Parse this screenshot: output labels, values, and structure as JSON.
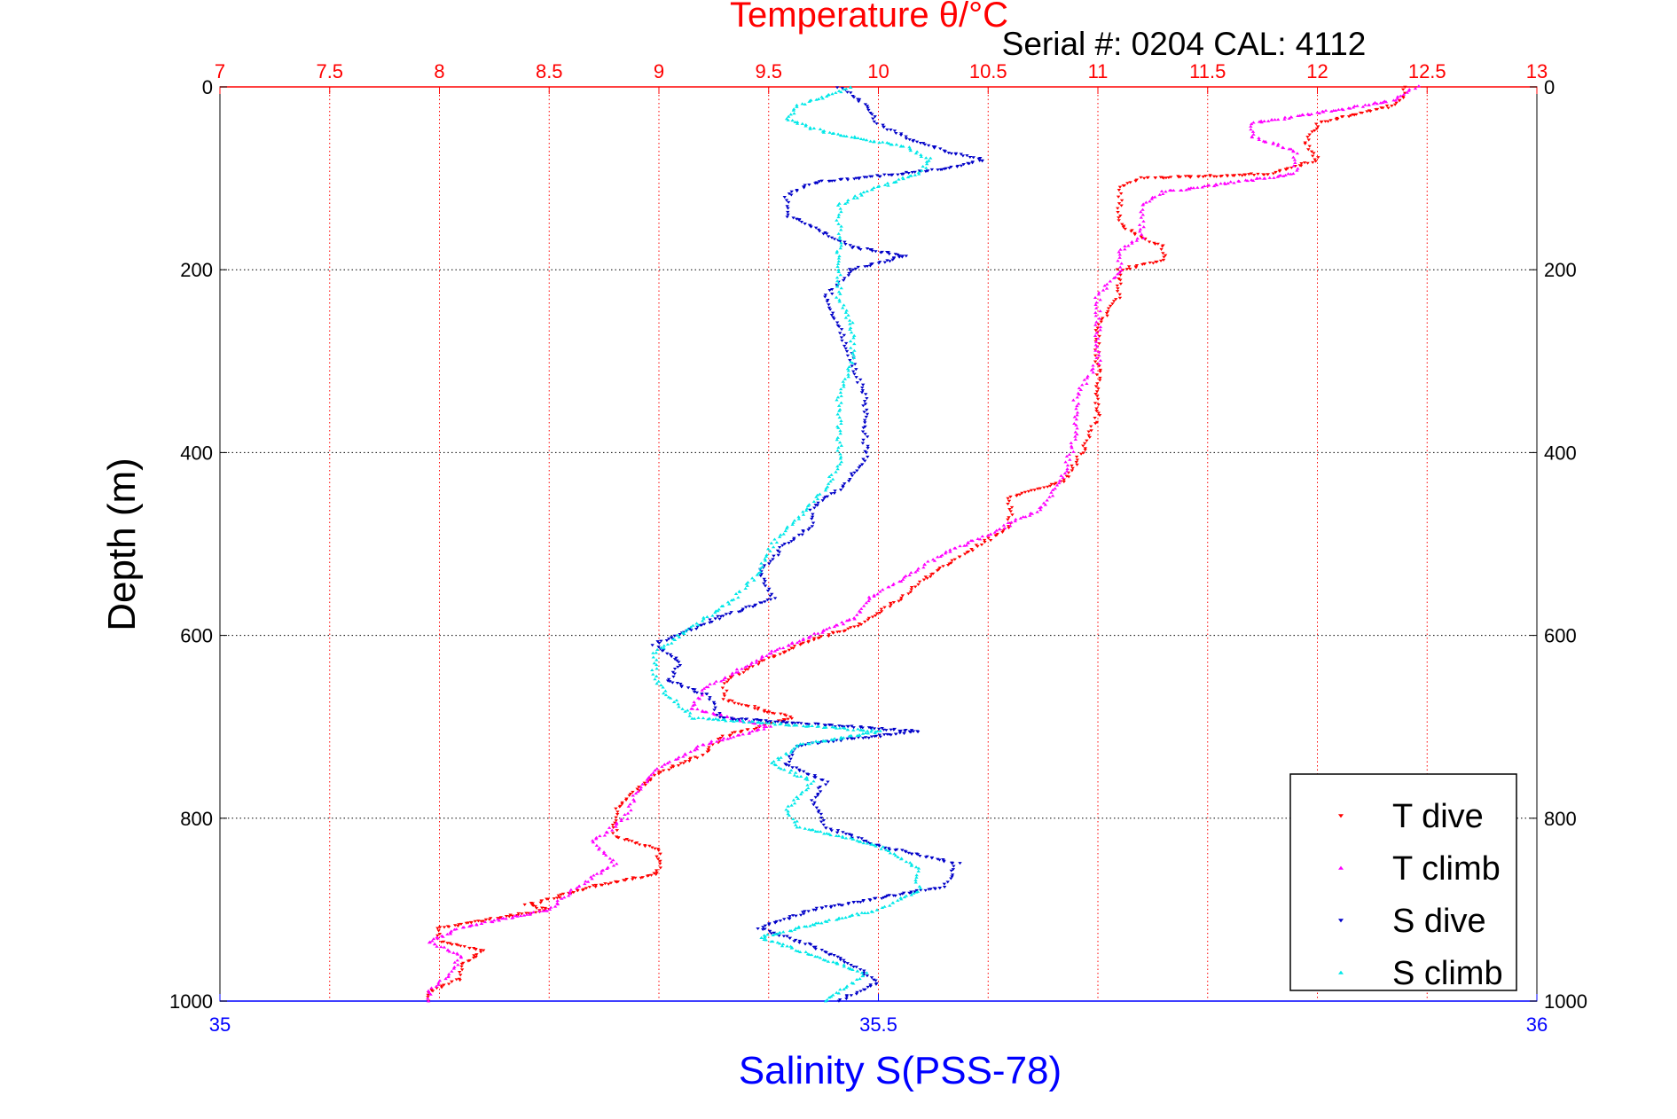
{
  "chart_data": {
    "type": "scatter",
    "title": "Temperature θ/°C",
    "subtitle": "Serial #: 0204  CAL: 4112",
    "ylabel": "Depth (m)",
    "xlabel_top": "Temperature θ/°C",
    "xlabel_bottom": "Salinity S(PSS-78)",
    "y_axis": {
      "min": 0,
      "max": 1000,
      "inverted": true,
      "ticks": [
        "0",
        "200",
        "400",
        "600",
        "800",
        "1000"
      ]
    },
    "x_axis_top": {
      "min": 7,
      "max": 13,
      "ticks": [
        "7",
        "7.5",
        "8",
        "8.5",
        "9",
        "9.5",
        "10",
        "10.5",
        "11",
        "11.5",
        "12",
        "12.5",
        "13"
      ]
    },
    "x_axis_bottom": {
      "min": 35,
      "max": 36,
      "ticks": [
        "35",
        "35.5",
        "36"
      ]
    },
    "grid": true,
    "legend_position": "bottom-right",
    "colors": {
      "temperature_axis": "#ff0000",
      "salinity_axis": "#0000ff",
      "t_dive": "#ff0000",
      "t_climb": "#ff00ff",
      "s_dive": "#0000c8",
      "s_climb": "#00e8e8"
    },
    "series": [
      {
        "name": "T dive",
        "axis": "temperature",
        "marker": "triangle-down",
        "points": [
          [
            12.4,
            0
          ],
          [
            12.4,
            10
          ],
          [
            12.35,
            20
          ],
          [
            12.0,
            40
          ],
          [
            11.95,
            60
          ],
          [
            12.0,
            80
          ],
          [
            11.8,
            95
          ],
          [
            11.2,
            100
          ],
          [
            11.1,
            110
          ],
          [
            11.1,
            130
          ],
          [
            11.1,
            150
          ],
          [
            11.2,
            165
          ],
          [
            11.3,
            175
          ],
          [
            11.3,
            190
          ],
          [
            11.1,
            200
          ],
          [
            11.1,
            230
          ],
          [
            11.0,
            260
          ],
          [
            11.0,
            300
          ],
          [
            11.0,
            330
          ],
          [
            11.0,
            360
          ],
          [
            10.95,
            390
          ],
          [
            10.9,
            410
          ],
          [
            10.85,
            430
          ],
          [
            10.6,
            450
          ],
          [
            10.6,
            480
          ],
          [
            10.4,
            510
          ],
          [
            10.2,
            540
          ],
          [
            10.1,
            560
          ],
          [
            10.0,
            575
          ],
          [
            9.9,
            590
          ],
          [
            9.7,
            605
          ],
          [
            9.5,
            625
          ],
          [
            9.3,
            650
          ],
          [
            9.3,
            670
          ],
          [
            9.6,
            690
          ],
          [
            9.3,
            710
          ],
          [
            9.2,
            730
          ],
          [
            9.0,
            750
          ],
          [
            8.9,
            770
          ],
          [
            8.8,
            790
          ],
          [
            8.8,
            820
          ],
          [
            9.0,
            835
          ],
          [
            9.0,
            860
          ],
          [
            8.7,
            875
          ],
          [
            8.4,
            895
          ],
          [
            8.5,
            900
          ],
          [
            8.0,
            920
          ],
          [
            8.0,
            935
          ],
          [
            8.2,
            945
          ],
          [
            8.1,
            960
          ],
          [
            8.1,
            975
          ],
          [
            7.95,
            990
          ],
          [
            7.95,
            1000
          ]
        ]
      },
      {
        "name": "T climb",
        "axis": "temperature",
        "marker": "triangle-up",
        "points": [
          [
            12.45,
            0
          ],
          [
            12.35,
            15
          ],
          [
            11.7,
            40
          ],
          [
            11.7,
            55
          ],
          [
            11.9,
            70
          ],
          [
            11.9,
            95
          ],
          [
            11.6,
            105
          ],
          [
            11.3,
            115
          ],
          [
            11.2,
            130
          ],
          [
            11.2,
            150
          ],
          [
            11.2,
            165
          ],
          [
            11.1,
            180
          ],
          [
            11.1,
            200
          ],
          [
            11.0,
            230
          ],
          [
            11.0,
            260
          ],
          [
            11.0,
            300
          ],
          [
            10.9,
            340
          ],
          [
            10.9,
            380
          ],
          [
            10.85,
            420
          ],
          [
            10.75,
            460
          ],
          [
            10.5,
            490
          ],
          [
            10.3,
            510
          ],
          [
            10.1,
            540
          ],
          [
            9.95,
            560
          ],
          [
            9.9,
            580
          ],
          [
            9.7,
            600
          ],
          [
            9.5,
            620
          ],
          [
            9.2,
            660
          ],
          [
            9.15,
            680
          ],
          [
            9.5,
            700
          ],
          [
            9.2,
            720
          ],
          [
            9.0,
            745
          ],
          [
            8.9,
            770
          ],
          [
            8.85,
            800
          ],
          [
            8.7,
            825
          ],
          [
            8.8,
            850
          ],
          [
            8.6,
            880
          ],
          [
            8.5,
            900
          ],
          [
            8.1,
            920
          ],
          [
            7.95,
            935
          ],
          [
            8.1,
            950
          ],
          [
            8.05,
            970
          ],
          [
            7.95,
            990
          ],
          [
            7.95,
            1000
          ]
        ]
      },
      {
        "name": "S dive",
        "axis": "salinity",
        "marker": "triangle-down",
        "points": [
          [
            35.47,
            0
          ],
          [
            35.49,
            20
          ],
          [
            35.5,
            40
          ],
          [
            35.52,
            55
          ],
          [
            35.55,
            70
          ],
          [
            35.58,
            80
          ],
          [
            35.55,
            90
          ],
          [
            35.45,
            105
          ],
          [
            35.43,
            120
          ],
          [
            35.43,
            140
          ],
          [
            35.46,
            160
          ],
          [
            35.48,
            175
          ],
          [
            35.52,
            185
          ],
          [
            35.48,
            200
          ],
          [
            35.46,
            230
          ],
          [
            35.47,
            260
          ],
          [
            35.48,
            300
          ],
          [
            35.49,
            340
          ],
          [
            35.49,
            380
          ],
          [
            35.49,
            410
          ],
          [
            35.47,
            440
          ],
          [
            35.45,
            460
          ],
          [
            35.45,
            480
          ],
          [
            35.43,
            500
          ],
          [
            35.41,
            530
          ],
          [
            35.42,
            560
          ],
          [
            35.38,
            580
          ],
          [
            35.33,
            610
          ],
          [
            35.35,
            630
          ],
          [
            35.34,
            650
          ],
          [
            35.37,
            665
          ],
          [
            35.38,
            690
          ],
          [
            35.53,
            705
          ],
          [
            35.44,
            720
          ],
          [
            35.43,
            740
          ],
          [
            35.46,
            760
          ],
          [
            35.45,
            780
          ],
          [
            35.46,
            810
          ],
          [
            35.5,
            830
          ],
          [
            35.56,
            850
          ],
          [
            35.55,
            875
          ],
          [
            35.45,
            900
          ],
          [
            35.41,
            920
          ],
          [
            35.45,
            940
          ],
          [
            35.48,
            960
          ],
          [
            35.5,
            980
          ],
          [
            35.47,
            1000
          ]
        ]
      },
      {
        "name": "S climb",
        "axis": "salinity",
        "marker": "triangle-up",
        "points": [
          [
            35.48,
            0
          ],
          [
            35.44,
            20
          ],
          [
            35.43,
            35
          ],
          [
            35.46,
            50
          ],
          [
            35.52,
            65
          ],
          [
            35.54,
            80
          ],
          [
            35.53,
            95
          ],
          [
            35.49,
            115
          ],
          [
            35.47,
            130
          ],
          [
            35.47,
            150
          ],
          [
            35.47,
            170
          ],
          [
            35.47,
            200
          ],
          [
            35.47,
            230
          ],
          [
            35.48,
            260
          ],
          [
            35.48,
            300
          ],
          [
            35.47,
            340
          ],
          [
            35.47,
            380
          ],
          [
            35.47,
            410
          ],
          [
            35.46,
            440
          ],
          [
            35.44,
            470
          ],
          [
            35.42,
            500
          ],
          [
            35.41,
            530
          ],
          [
            35.39,
            560
          ],
          [
            35.36,
            590
          ],
          [
            35.33,
            620
          ],
          [
            35.33,
            645
          ],
          [
            35.34,
            665
          ],
          [
            35.36,
            690
          ],
          [
            35.5,
            705
          ],
          [
            35.44,
            720
          ],
          [
            35.42,
            740
          ],
          [
            35.45,
            760
          ],
          [
            35.43,
            790
          ],
          [
            35.44,
            810
          ],
          [
            35.5,
            830
          ],
          [
            35.53,
            855
          ],
          [
            35.53,
            880
          ],
          [
            35.5,
            900
          ],
          [
            35.41,
            930
          ],
          [
            35.45,
            950
          ],
          [
            35.49,
            970
          ],
          [
            35.47,
            990
          ],
          [
            35.46,
            1000
          ]
        ]
      }
    ],
    "legend": [
      {
        "label": "T dive",
        "color": "#ff0000",
        "marker": "triangle-down"
      },
      {
        "label": "T climb",
        "color": "#ff00ff",
        "marker": "triangle-up"
      },
      {
        "label": "S dive",
        "color": "#0000c8",
        "marker": "triangle-down"
      },
      {
        "label": "S climb",
        "color": "#00e8e8",
        "marker": "triangle-up"
      }
    ]
  }
}
